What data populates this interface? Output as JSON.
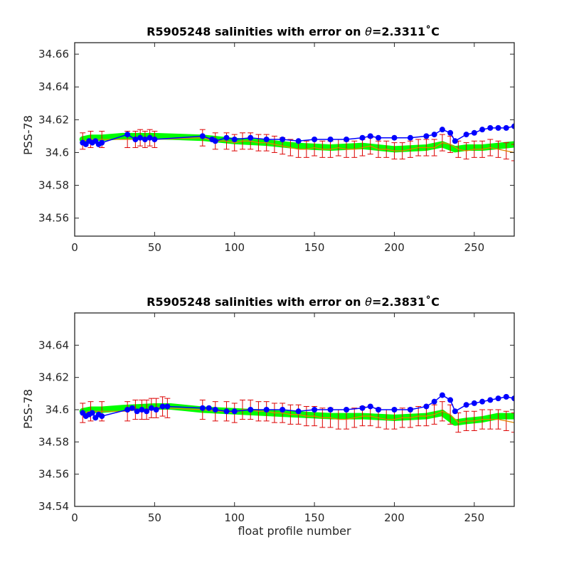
{
  "chart_data": [
    {
      "type": "line",
      "title": "R5905248 salinities with error on θ=2.3311˚C",
      "title_parts": {
        "prefix": "R5905248 salinities with error on ",
        "symbol": "θ",
        "suffix": "=2.3311˚C"
      },
      "xlabel": "",
      "ylabel": "PSS-78",
      "xlim": [
        0,
        275
      ],
      "ylim": [
        34.549,
        34.667
      ],
      "xticks": [
        0,
        50,
        100,
        150,
        200,
        250
      ],
      "xtick_labels": [
        "0",
        "50",
        "100",
        "150",
        "200",
        "250"
      ],
      "yticks": [
        34.56,
        34.58,
        34.6,
        34.62,
        34.64,
        34.66
      ],
      "ytick_labels": [
        "34.56",
        "34.58",
        "34.6",
        "34.62",
        "34.64",
        "34.66"
      ],
      "grid": false,
      "colors": {
        "blue": "#0000ff",
        "green": "#00ff00",
        "red": "#dd0000",
        "orange": "#dd8800"
      },
      "series": [
        {
          "role": "float",
          "color": "#0000ff",
          "x": [
            5,
            7,
            9,
            11,
            13,
            15,
            17,
            33,
            38,
            41,
            44,
            47,
            50,
            80,
            86,
            88,
            95,
            100,
            110,
            120,
            130,
            140,
            150,
            160,
            170,
            180,
            185,
            190,
            200,
            210,
            220,
            225,
            230,
            235,
            238,
            245,
            250,
            255,
            260,
            265,
            270,
            275
          ],
          "y": [
            34.606,
            34.605,
            34.607,
            34.606,
            34.607,
            34.605,
            34.606,
            34.611,
            34.608,
            34.609,
            34.608,
            34.609,
            34.608,
            34.61,
            34.608,
            34.607,
            34.609,
            34.608,
            34.609,
            34.608,
            34.608,
            34.607,
            34.608,
            34.608,
            34.608,
            34.609,
            34.61,
            34.609,
            34.609,
            34.609,
            34.61,
            34.611,
            34.614,
            34.612,
            34.607,
            34.611,
            34.612,
            34.614,
            34.615,
            34.615,
            34.615,
            34.616
          ]
        },
        {
          "role": "mapped",
          "color": "#00ff00",
          "x": [
            5,
            10,
            17,
            30,
            50,
            80,
            100,
            120,
            140,
            160,
            180,
            200,
            220,
            230,
            238,
            245,
            255,
            265,
            275
          ],
          "y": [
            34.608,
            34.609,
            34.609,
            34.61,
            34.61,
            34.609,
            34.607,
            34.606,
            34.604,
            34.603,
            34.604,
            34.602,
            34.603,
            34.605,
            34.602,
            34.603,
            34.603,
            34.604,
            34.605
          ]
        },
        {
          "role": "mapped_error",
          "color": "#dd0000",
          "x": [
            5,
            10,
            17,
            33,
            38,
            41,
            44,
            47,
            50,
            80,
            88,
            95,
            100,
            105,
            110,
            115,
            120,
            125,
            130,
            135,
            140,
            145,
            150,
            155,
            160,
            165,
            170,
            175,
            180,
            185,
            190,
            195,
            200,
            205,
            210,
            215,
            220,
            225,
            230,
            235,
            240,
            245,
            250,
            255,
            260,
            265,
            270,
            275
          ],
          "y": [
            34.607,
            34.608,
            34.608,
            34.608,
            34.608,
            34.609,
            34.608,
            34.609,
            34.608,
            34.609,
            34.607,
            34.607,
            34.606,
            34.607,
            34.607,
            34.606,
            34.606,
            34.605,
            34.604,
            34.603,
            34.602,
            34.602,
            34.603,
            34.602,
            34.602,
            34.603,
            34.602,
            34.602,
            34.603,
            34.604,
            34.602,
            34.602,
            34.601,
            34.601,
            34.602,
            34.603,
            34.603,
            34.603,
            34.606,
            34.605,
            34.602,
            34.601,
            34.602,
            34.602,
            34.603,
            34.602,
            34.601,
            34.6
          ],
          "err": 0.005
        }
      ]
    },
    {
      "type": "line",
      "title": "R5905248 salinities with error on θ=2.3831˚C",
      "title_parts": {
        "prefix": "R5905248 salinities with error on ",
        "symbol": "θ",
        "suffix": "=2.3831˚C"
      },
      "xlabel": "float profile number",
      "ylabel": "PSS-78",
      "xlim": [
        0,
        275
      ],
      "ylim": [
        34.54,
        34.66
      ],
      "xticks": [
        0,
        50,
        100,
        150,
        200,
        250
      ],
      "xtick_labels": [
        "0",
        "50",
        "100",
        "150",
        "200",
        "250"
      ],
      "yticks": [
        34.54,
        34.56,
        34.58,
        34.6,
        34.62,
        34.64
      ],
      "ytick_labels": [
        "34.54",
        "34.56",
        "34.58",
        "34.6",
        "34.62",
        "34.64"
      ],
      "grid": false,
      "colors": {
        "blue": "#0000ff",
        "green": "#00ff00",
        "red": "#dd0000",
        "orange": "#dd8800"
      },
      "series": [
        {
          "role": "float",
          "color": "#0000ff",
          "x": [
            5,
            7,
            9,
            11,
            13,
            15,
            17,
            33,
            36,
            39,
            42,
            45,
            48,
            51,
            55,
            58,
            80,
            84,
            88,
            95,
            100,
            110,
            120,
            130,
            140,
            150,
            160,
            170,
            180,
            185,
            190,
            200,
            210,
            220,
            225,
            230,
            235,
            238,
            245,
            250,
            255,
            260,
            265,
            270,
            275
          ],
          "y": [
            34.598,
            34.596,
            34.597,
            34.598,
            34.595,
            34.597,
            34.596,
            34.6,
            34.601,
            34.599,
            34.6,
            34.599,
            34.601,
            34.6,
            34.602,
            34.602,
            34.601,
            34.601,
            34.6,
            34.599,
            34.599,
            34.6,
            34.6,
            34.6,
            34.599,
            34.6,
            34.6,
            34.6,
            34.601,
            34.602,
            34.6,
            34.6,
            34.6,
            34.602,
            34.605,
            34.609,
            34.606,
            34.599,
            34.603,
            34.604,
            34.605,
            34.606,
            34.607,
            34.608,
            34.607
          ]
        },
        {
          "role": "mapped",
          "color": "#00ff00",
          "x": [
            5,
            10,
            17,
            30,
            50,
            60,
            80,
            100,
            120,
            140,
            160,
            180,
            200,
            220,
            230,
            238,
            245,
            255,
            265,
            275
          ],
          "y": [
            34.599,
            34.6,
            34.6,
            34.601,
            34.602,
            34.602,
            34.6,
            34.599,
            34.598,
            34.597,
            34.596,
            34.596,
            34.595,
            34.596,
            34.598,
            34.592,
            34.593,
            34.594,
            34.596,
            34.596
          ]
        },
        {
          "role": "mapped_error",
          "color": "#dd0000",
          "x": [
            5,
            10,
            17,
            33,
            38,
            42,
            45,
            48,
            51,
            55,
            58,
            80,
            88,
            95,
            100,
            105,
            110,
            115,
            120,
            125,
            130,
            135,
            140,
            145,
            150,
            155,
            160,
            165,
            170,
            175,
            180,
            185,
            190,
            195,
            200,
            205,
            210,
            215,
            220,
            225,
            230,
            235,
            240,
            245,
            250,
            255,
            260,
            265,
            270,
            275
          ],
          "y": [
            34.598,
            34.599,
            34.599,
            34.599,
            34.6,
            34.6,
            34.6,
            34.601,
            34.601,
            34.602,
            34.601,
            34.6,
            34.599,
            34.599,
            34.598,
            34.6,
            34.6,
            34.599,
            34.599,
            34.598,
            34.598,
            34.597,
            34.597,
            34.596,
            34.596,
            34.595,
            34.595,
            34.594,
            34.594,
            34.595,
            34.596,
            34.596,
            34.595,
            34.594,
            34.594,
            34.595,
            34.595,
            34.596,
            34.596,
            34.597,
            34.599,
            34.597,
            34.592,
            34.593,
            34.593,
            34.594,
            34.594,
            34.594,
            34.593,
            34.592
          ],
          "err": 0.006
        }
      ]
    }
  ]
}
